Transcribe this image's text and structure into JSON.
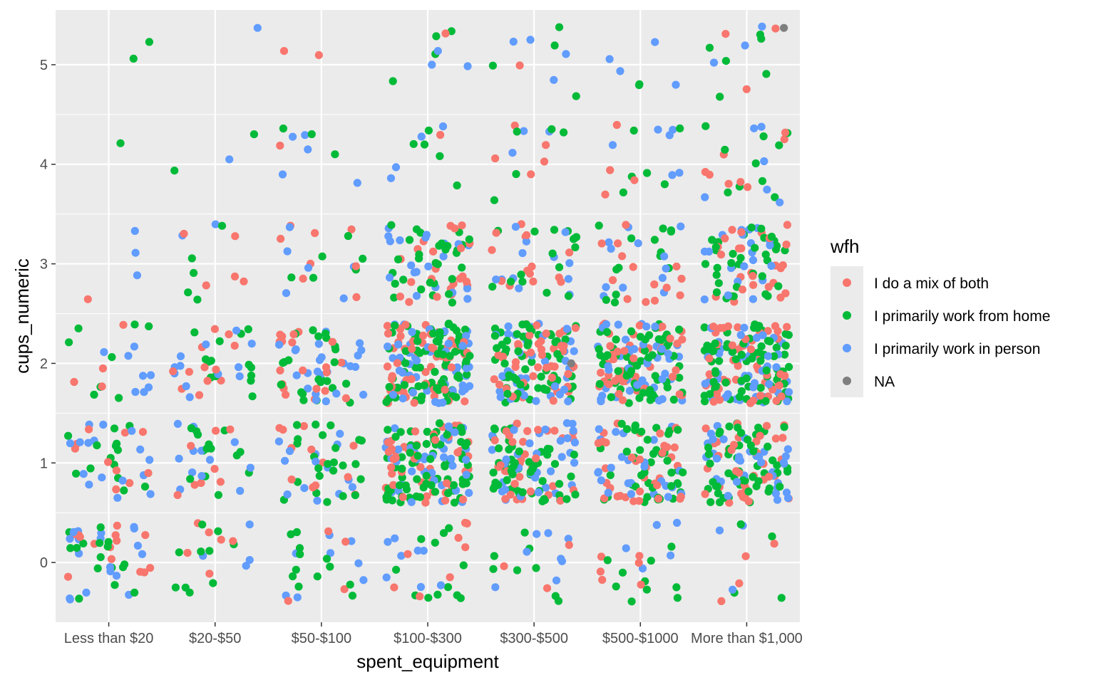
{
  "chart_data": {
    "type": "scatter",
    "jitter": true,
    "xlabel": "spent_equipment",
    "ylabel": "cups_numeric",
    "categories": [
      "Less than $20",
      "$20-$50",
      "$50-$100",
      "$100-$300",
      "$300-$500",
      "$500-$1000",
      "More than $1,000"
    ],
    "yticks": [
      0,
      1,
      2,
      3,
      4,
      5
    ],
    "ylim": [
      -0.6,
      5.55
    ],
    "grid": true,
    "background": "#ebebeb",
    "legend": {
      "title": "wfh",
      "placement": "right"
    },
    "series": [
      {
        "name": "I do a mix of both",
        "color": "#F8766D"
      },
      {
        "name": "I primarily work from home",
        "color": "#00BA38"
      },
      {
        "name": "I primarily work in person",
        "color": "#619CFF"
      },
      {
        "name": "NA",
        "color": "#7F7F7F"
      }
    ],
    "point_counts": {
      "description_keys": [
        "category",
        "cups_level",
        "mix",
        "home",
        "person"
      ],
      "rows": [
        [
          "Less than $20",
          0,
          14,
          16,
          18
        ],
        [
          "Less than $20",
          1,
          10,
          14,
          16
        ],
        [
          "Less than $20",
          2,
          4,
          8,
          8
        ],
        [
          "Less than $20",
          3,
          1,
          0,
          3
        ],
        [
          "Less than $20",
          4,
          0,
          1,
          0
        ],
        [
          "Less than $20",
          5,
          0,
          2,
          0
        ],
        [
          "$20-$50",
          0,
          6,
          10,
          4
        ],
        [
          "$20-$50",
          1,
          8,
          14,
          12
        ],
        [
          "$20-$50",
          2,
          12,
          14,
          12
        ],
        [
          "$20-$50",
          3,
          5,
          5,
          2
        ],
        [
          "$20-$50",
          4,
          0,
          2,
          1
        ],
        [
          "$20-$50",
          5,
          0,
          0,
          1
        ],
        [
          "$50-$100",
          0,
          4,
          12,
          8
        ],
        [
          "$50-$100",
          1,
          12,
          24,
          14
        ],
        [
          "$50-$100",
          2,
          20,
          24,
          24
        ],
        [
          "$50-$100",
          3,
          8,
          6,
          6
        ],
        [
          "$50-$100",
          4,
          1,
          3,
          5
        ],
        [
          "$50-$100",
          5,
          2,
          0,
          0
        ],
        [
          "$100-$300",
          0,
          8,
          12,
          8
        ],
        [
          "$100-$300",
          1,
          45,
          75,
          40
        ],
        [
          "$100-$300",
          2,
          65,
          80,
          50
        ],
        [
          "$100-$300",
          3,
          22,
          30,
          20
        ],
        [
          "$100-$300",
          4,
          1,
          5,
          4
        ],
        [
          "$100-$300",
          5,
          1,
          4,
          3
        ],
        [
          "$300-$500",
          0,
          3,
          8,
          8
        ],
        [
          "$300-$500",
          1,
          35,
          55,
          35
        ],
        [
          "$300-$500",
          2,
          45,
          60,
          40
        ],
        [
          "$300-$500",
          3,
          14,
          16,
          12
        ],
        [
          "$300-$500",
          4,
          5,
          5,
          3
        ],
        [
          "$300-$500",
          5,
          1,
          4,
          4
        ],
        [
          "$500-$1000",
          0,
          6,
          10,
          5
        ],
        [
          "$500-$1000",
          1,
          35,
          45,
          25
        ],
        [
          "$500-$1000",
          2,
          50,
          65,
          45
        ],
        [
          "$500-$1000",
          3,
          14,
          14,
          12
        ],
        [
          "$500-$1000",
          4,
          4,
          6,
          6
        ],
        [
          "$500-$1000",
          5,
          0,
          2,
          4
        ],
        [
          "More than $1,000",
          0,
          4,
          4,
          3
        ],
        [
          "More than $1,000",
          1,
          35,
          55,
          35
        ],
        [
          "More than $1,000",
          2,
          55,
          75,
          50
        ],
        [
          "More than $1,000",
          3,
          25,
          35,
          20
        ],
        [
          "More than $1,000",
          4,
          8,
          10,
          6
        ],
        [
          "More than $1,000",
          5,
          3,
          6,
          3
        ]
      ]
    },
    "na_points": [
      {
        "category": "$300-$500",
        "y": 2.0
      },
      {
        "category": "More than $1,000",
        "y": 5.37
      }
    ]
  }
}
